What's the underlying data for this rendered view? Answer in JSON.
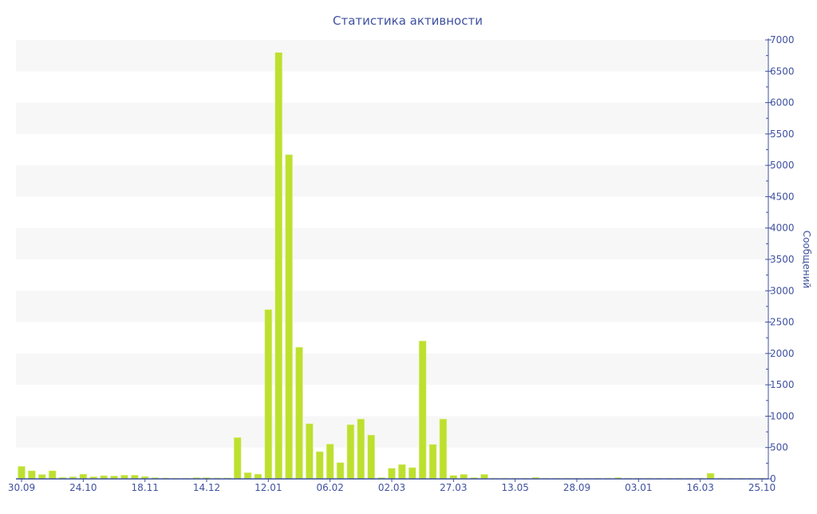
{
  "chart_data": {
    "type": "bar",
    "title": "Статистика активности",
    "ylabel": "Сообщений",
    "xlabel": "",
    "ylim": [
      0,
      7000
    ],
    "y_axis_position": "right",
    "y_ticks": [
      0,
      500,
      1000,
      1500,
      2000,
      2500,
      3000,
      3500,
      4000,
      4500,
      5000,
      5500,
      6000,
      6500,
      7000
    ],
    "x_tick_labels": [
      "30.09",
      "24.10",
      "18.11",
      "14.12",
      "12.01",
      "06.02",
      "02.03",
      "27.03",
      "13.05",
      "28.09",
      "03.01",
      "16.03",
      "25.10"
    ],
    "x_tick_every": 6,
    "grid": "alternating horizontal bands",
    "legend": "none",
    "colors": {
      "bar": "#bde02f",
      "text": "#3f51a0",
      "band": "#f7f7f7",
      "axis": "#3f51a0"
    },
    "values": [
      200,
      130,
      70,
      130,
      25,
      34,
      76,
      34,
      51,
      47,
      59,
      59,
      38,
      21,
      17,
      13,
      13,
      21,
      21,
      17,
      17,
      660,
      100,
      76,
      2700,
      6800,
      5170,
      2100,
      880,
      435,
      555,
      260,
      865,
      955,
      700,
      21,
      170,
      230,
      180,
      2200,
      550,
      955,
      55,
      72,
      21,
      72,
      13,
      13,
      13,
      13,
      25,
      13,
      13,
      13,
      13,
      13,
      13,
      13,
      21,
      13,
      13,
      13,
      13,
      13,
      13,
      13,
      13,
      90,
      13,
      13,
      13,
      13,
      13
    ]
  }
}
